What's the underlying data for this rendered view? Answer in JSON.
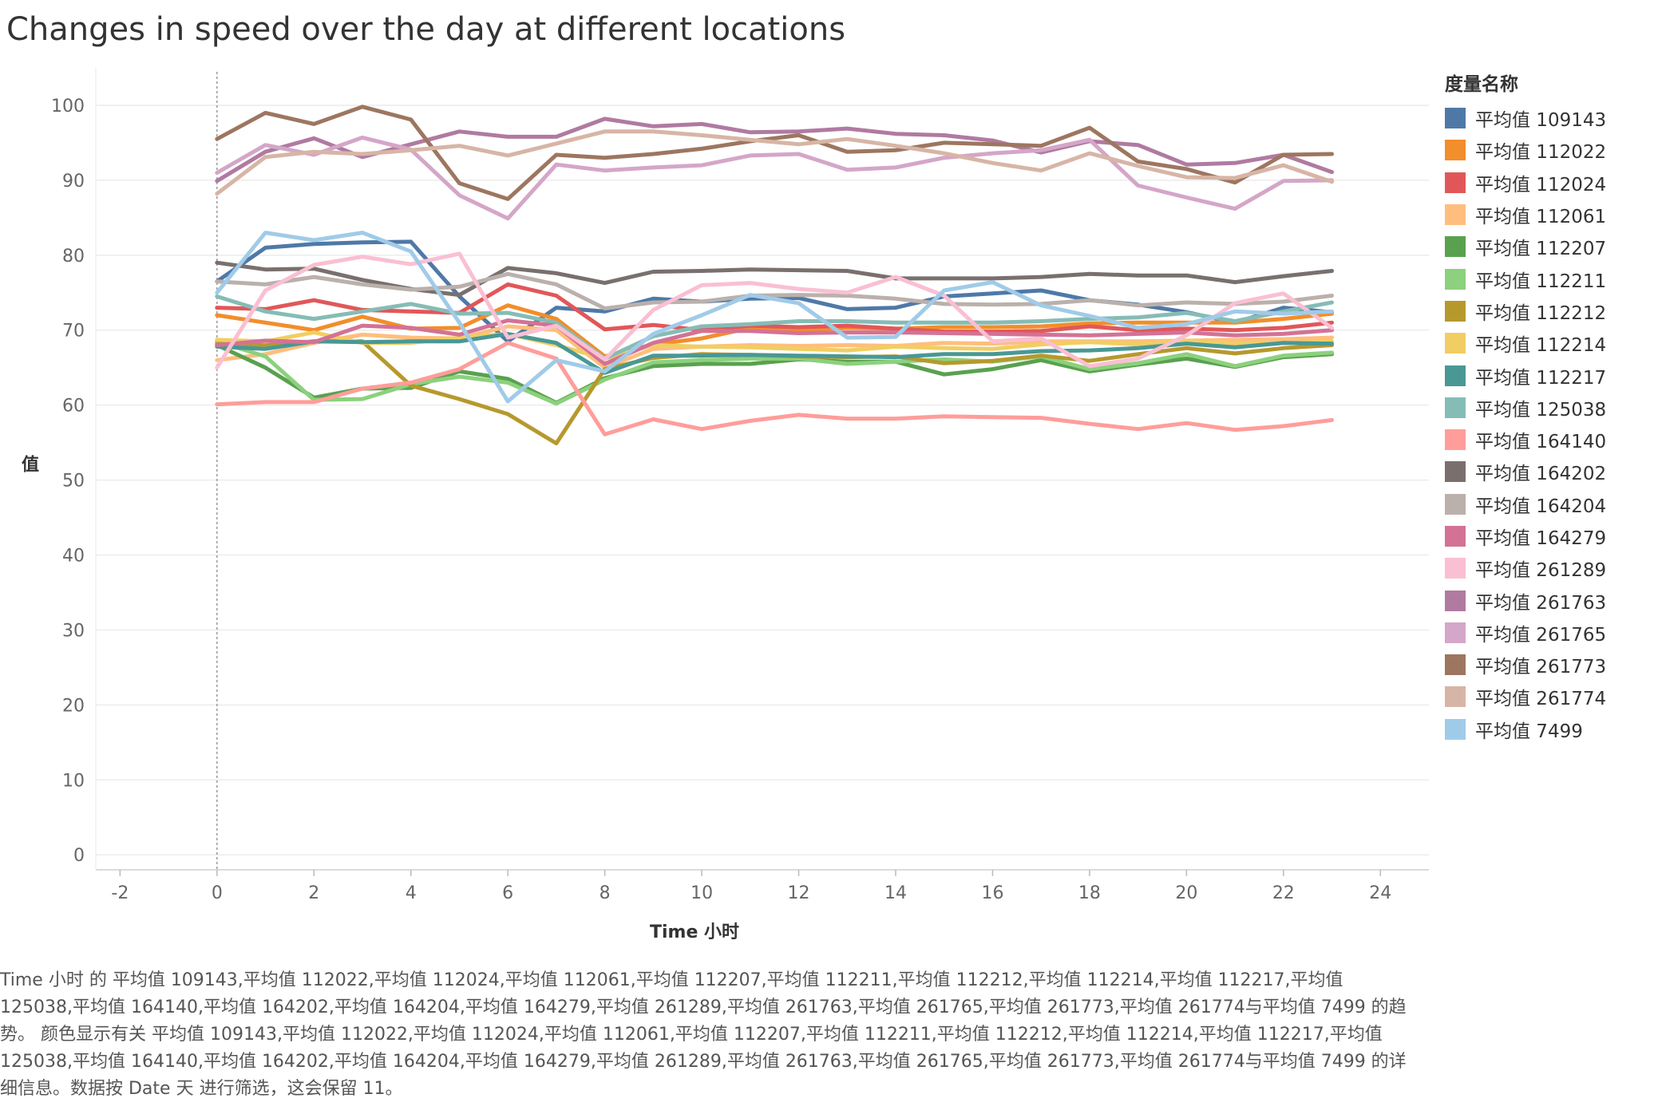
{
  "title": "Changes in speed over the day at different locations",
  "caption": "Time 小时 的 平均值 109143,平均值 112022,平均值 112024,平均值 112061,平均值 112207,平均值 112211,平均值 112212,平均值 112214,平均值 112217,平均值 125038,平均值 164140,平均值 164202,平均值 164204,平均值 164279,平均值 261289,平均值 261763,平均值 261765,平均值 261773,平均值 261774与平均值 7499 的趋势。 颜色显示有关 平均值 109143,平均值 112022,平均值 112024,平均值 112061,平均值 112207,平均值 112211,平均值 112212,平均值 112214,平均值 112217,平均值 125038,平均值 164140,平均值 164202,平均值 164204,平均值 164279,平均值 261289,平均值 261763,平均值 261765,平均值 261773,平均值 261774与平均值 7499 的详细信息。数据按 Date 天 进行筛选，这会保留 11。",
  "chart_data": {
    "type": "line",
    "xlabel": "Time 小时",
    "ylabel": "值",
    "xlim": [
      -2.5,
      25
    ],
    "ylim": [
      -2,
      105
    ],
    "xticks": [
      -2,
      0,
      2,
      4,
      6,
      8,
      10,
      12,
      14,
      16,
      18,
      20,
      22,
      24
    ],
    "yticks": [
      0,
      10,
      20,
      30,
      40,
      50,
      60,
      70,
      80,
      90,
      100
    ],
    "legend_title": "度量名称",
    "legend_position": "right",
    "grid": "horizontal",
    "x": [
      0,
      1,
      2,
      3,
      4,
      5,
      6,
      7,
      8,
      9,
      10,
      11,
      12,
      13,
      14,
      15,
      16,
      17,
      18,
      19,
      20,
      21,
      22,
      23
    ],
    "series": [
      {
        "name": "平均值 109143",
        "color": "#4e79a7",
        "values": [
          76.5,
          81,
          81.5,
          81.7,
          81.8,
          74.5,
          68.5,
          73,
          72.5,
          74.2,
          73.8,
          74.2,
          74.3,
          72.8,
          73,
          74.5,
          74.9,
          75.3,
          74,
          73.4,
          72.4,
          71,
          73,
          72.4
        ]
      },
      {
        "name": "平均值 112022",
        "color": "#f28e2b",
        "values": [
          72,
          71,
          70,
          71.8,
          70.2,
          70.3,
          73.3,
          71.5,
          66.5,
          68.1,
          68.9,
          70.3,
          70,
          70.3,
          70.2,
          70.4,
          70.4,
          70.5,
          70.9,
          71,
          71,
          71,
          71.5,
          72.2
        ]
      },
      {
        "name": "平均值 112024",
        "color": "#e15759",
        "values": [
          73,
          72.8,
          74,
          72.7,
          72.5,
          72.3,
          76.1,
          74.6,
          70.1,
          70.7,
          70,
          70.6,
          70.4,
          70.6,
          70.2,
          69.8,
          69.8,
          69.9,
          70.5,
          70,
          70.2,
          70,
          70.3,
          71
        ]
      },
      {
        "name": "平均值 112061",
        "color": "#ffbe7d",
        "values": [
          66,
          66.8,
          68.3,
          69.4,
          69,
          68.9,
          70.5,
          70,
          65,
          67.5,
          67.8,
          68,
          67.9,
          68,
          67.9,
          68.3,
          68.2,
          68.5,
          68.5,
          68.5,
          68.6,
          68.7,
          68.8,
          69
        ]
      },
      {
        "name": "平均值 112207",
        "color": "#59a14f",
        "values": [
          68,
          65,
          61,
          62.2,
          62.3,
          64.5,
          63.5,
          60.3,
          63.6,
          65.2,
          65.5,
          65.5,
          66.1,
          65.8,
          65.8,
          64.1,
          64.8,
          66,
          64.5,
          65.4,
          66.2,
          65.1,
          66.4,
          66.8
        ]
      },
      {
        "name": "平均值 112211",
        "color": "#8cd17d",
        "values": [
          68.5,
          66.5,
          60.7,
          60.8,
          62.8,
          63.8,
          63,
          60.2,
          63.4,
          65.7,
          66,
          66.2,
          66.2,
          65.5,
          65.8,
          66.1,
          65.8,
          66.5,
          64.8,
          65.6,
          66.8,
          65.2,
          66.6,
          67
        ]
      },
      {
        "name": "平均值 112212",
        "color": "#b6992d",
        "values": [
          68.2,
          68,
          68.5,
          68.5,
          62.6,
          60.8,
          58.8,
          54.9,
          64.8,
          66.3,
          66.8,
          66.7,
          66.5,
          66.4,
          66.5,
          65.6,
          65.9,
          66.6,
          65.9,
          66.8,
          67.6,
          66.9,
          67.6,
          68
        ]
      },
      {
        "name": "平均值 112214",
        "color": "#f1ce63",
        "values": [
          68.7,
          68.5,
          69.7,
          68.3,
          68.3,
          69,
          69.5,
          68,
          66.2,
          68,
          67.8,
          67.7,
          67.5,
          67.3,
          67.8,
          67.6,
          67.5,
          68.1,
          68.4,
          68.1,
          68.6,
          68.2,
          68.3,
          68.5
        ]
      },
      {
        "name": "平均值 112217",
        "color": "#499894",
        "values": [
          67.8,
          67.5,
          68.5,
          68.4,
          68.5,
          68.5,
          69.5,
          68.3,
          64.3,
          66.6,
          66.6,
          66.7,
          66.6,
          66.5,
          66.4,
          66.8,
          66.8,
          67.2,
          67.3,
          67.6,
          68.2,
          67.7,
          68.3,
          68.2
        ]
      },
      {
        "name": "平均值 125038",
        "color": "#86bcb6",
        "values": [
          74.5,
          72.5,
          71.5,
          72.5,
          73.5,
          72.2,
          72.3,
          71,
          66.2,
          69.2,
          70.5,
          70.8,
          71.2,
          71.2,
          71,
          71,
          71,
          71.2,
          71.5,
          71.7,
          72.3,
          71.2,
          72.5,
          73.7
        ]
      },
      {
        "name": "平均值 164140",
        "color": "#ff9d9a",
        "values": [
          60.1,
          60.4,
          60.4,
          62.2,
          63,
          64.8,
          68.3,
          66.2,
          56.1,
          58.1,
          56.8,
          57.9,
          58.7,
          58.2,
          58.2,
          58.5,
          58.4,
          58.3,
          57.5,
          56.8,
          57.6,
          56.7,
          57.2,
          58
        ]
      },
      {
        "name": "平均值 164202",
        "color": "#79706e",
        "values": [
          79,
          78.1,
          78.2,
          76.7,
          75.5,
          74.7,
          78.3,
          77.6,
          76.3,
          77.8,
          77.9,
          78.1,
          78,
          77.9,
          76.9,
          76.9,
          76.9,
          77.1,
          77.5,
          77.3,
          77.3,
          76.4,
          77.2,
          77.9
        ]
      },
      {
        "name": "平均值 164204",
        "color": "#bab0ac",
        "values": [
          76.5,
          76.1,
          77.1,
          76.1,
          75.4,
          75.8,
          77.5,
          76.1,
          72.9,
          73.7,
          73.8,
          74.6,
          74.7,
          74.6,
          74.2,
          73.5,
          73.4,
          73.5,
          74,
          73.3,
          73.7,
          73.5,
          73.8,
          74.6
        ]
      },
      {
        "name": "平均值 164279",
        "color": "#d37295",
        "values": [
          68,
          68.6,
          68.4,
          70.6,
          70.3,
          69.4,
          71.3,
          70.6,
          65.5,
          68.3,
          69.9,
          69.9,
          69.6,
          69.7,
          69.7,
          69.6,
          69.5,
          69.4,
          69.3,
          69.5,
          69.7,
          69.3,
          69.5,
          70
        ]
      },
      {
        "name": "平均值 261289",
        "color": "#fabfd2",
        "values": [
          65,
          75.3,
          78.7,
          79.8,
          78.8,
          80.2,
          69,
          70.6,
          66.1,
          72.7,
          76,
          76.3,
          75.5,
          75,
          77.1,
          74.6,
          68.5,
          68.9,
          65.2,
          66.2,
          69.3,
          73.6,
          74.9,
          70.3
        ]
      },
      {
        "name": "平均值 261763",
        "color": "#b07aa1",
        "values": [
          89.9,
          93.8,
          95.6,
          93.1,
          94.8,
          96.5,
          95.8,
          95.8,
          98.2,
          97.2,
          97.5,
          96.4,
          96.5,
          96.9,
          96.2,
          96,
          95.3,
          93.7,
          95.2,
          94.7,
          92.1,
          92.3,
          93.4,
          91.1
        ]
      },
      {
        "name": "平均值 261765",
        "color": "#d4a6c8",
        "values": [
          91,
          94.7,
          93.4,
          95.7,
          94.1,
          88,
          84.9,
          92.1,
          91.3,
          91.7,
          92,
          93.3,
          93.5,
          91.4,
          91.7,
          93,
          93.6,
          94,
          95.4,
          89.3,
          87.7,
          86.2,
          89.9,
          90
        ]
      },
      {
        "name": "平均值 261773",
        "color": "#9d7660",
        "values": [
          95.5,
          99,
          97.5,
          99.8,
          98.1,
          89.6,
          87.5,
          93.4,
          93,
          93.5,
          94.2,
          95.2,
          96,
          93.8,
          94,
          95,
          94.8,
          94.6,
          97,
          92.5,
          91.5,
          89.7,
          93.4,
          93.5
        ]
      },
      {
        "name": "平均值 261774",
        "color": "#d7b5a6",
        "values": [
          88.2,
          93.1,
          93.8,
          93.5,
          94,
          94.6,
          93.3,
          94.9,
          96.5,
          96.5,
          96,
          95.4,
          94.8,
          95.5,
          94.6,
          93.6,
          92.3,
          91.3,
          93.6,
          91.9,
          90.4,
          90.3,
          92,
          89.8
        ]
      },
      {
        "name": "平均值 7499",
        "color": "#a0cbe8",
        "values": [
          75,
          83,
          82,
          83,
          80.5,
          71,
          60.5,
          66,
          64.5,
          69.5,
          72,
          74.7,
          73.6,
          69,
          69.1,
          75.3,
          76.4,
          73.3,
          71.9,
          70.3,
          70.8,
          72.5,
          72.2,
          72.5
        ]
      }
    ]
  }
}
